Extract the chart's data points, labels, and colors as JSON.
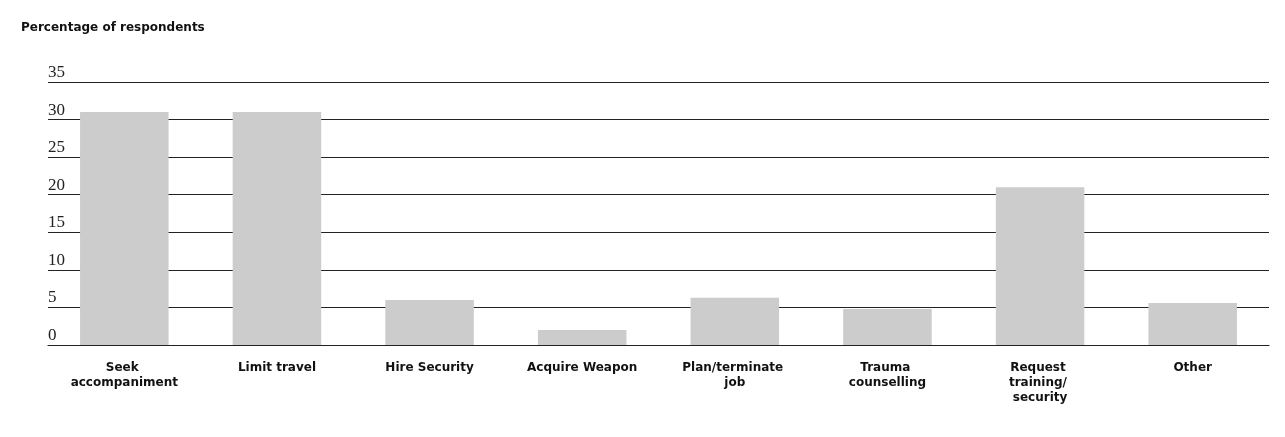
{
  "chart_data": {
    "type": "bar",
    "ylabel": "Percentage of respondents",
    "categories": [
      "Seek accompaniment",
      "Limit travel",
      "Hire Security",
      "Acquire Weapon",
      "Plan/terminate job",
      "Trauma counselling",
      "Request training/ security",
      "Other"
    ],
    "values": [
      31,
      31,
      6,
      2,
      6.3,
      4.8,
      21,
      5.6
    ],
    "color": "#cccccc",
    "ylim": [
      0,
      35
    ],
    "yticks": [
      0,
      5,
      10,
      15,
      20,
      25,
      30,
      35
    ],
    "grid": "y"
  }
}
